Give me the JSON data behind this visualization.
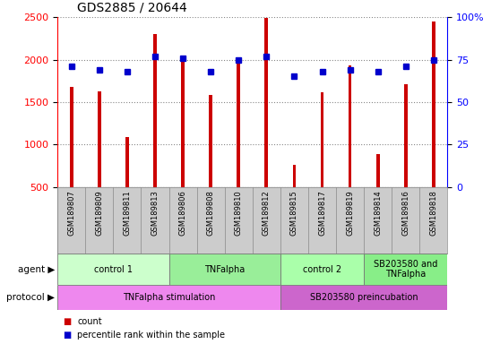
{
  "title": "GDS2885 / 20644",
  "samples": [
    "GSM189807",
    "GSM189809",
    "GSM189811",
    "GSM189813",
    "GSM189806",
    "GSM189808",
    "GSM189810",
    "GSM189812",
    "GSM189815",
    "GSM189817",
    "GSM189819",
    "GSM189814",
    "GSM189816",
    "GSM189818"
  ],
  "counts": [
    1680,
    1620,
    1090,
    2300,
    2000,
    1580,
    1980,
    2490,
    760,
    1610,
    1930,
    890,
    1710,
    2450
  ],
  "percentile_ranks": [
    71,
    69,
    68,
    77,
    76,
    68,
    75,
    77,
    65,
    68,
    69,
    68,
    71,
    75
  ],
  "ylim_left": [
    500,
    2500
  ],
  "ylim_right": [
    0,
    100
  ],
  "yticks_left": [
    500,
    1000,
    1500,
    2000,
    2500
  ],
  "yticks_right": [
    0,
    25,
    50,
    75,
    100
  ],
  "bar_color": "#cc0000",
  "marker_color": "#0000cc",
  "agent_groups": [
    {
      "label": "control 1",
      "start": 0,
      "end": 4,
      "color": "#ccffcc"
    },
    {
      "label": "TNFalpha",
      "start": 4,
      "end": 8,
      "color": "#99ee99"
    },
    {
      "label": "control 2",
      "start": 8,
      "end": 11,
      "color": "#aaffaa"
    },
    {
      "label": "SB203580 and\nTNFalpha",
      "start": 11,
      "end": 14,
      "color": "#88ee88"
    }
  ],
  "protocol_groups": [
    {
      "label": "TNFalpha stimulation",
      "start": 0,
      "end": 8,
      "color": "#ee88ee"
    },
    {
      "label": "SB203580 preincubation",
      "start": 8,
      "end": 14,
      "color": "#cc66cc"
    }
  ],
  "grid_color": "#888888",
  "tick_area_color": "#cccccc",
  "legend_items": [
    {
      "color": "#cc0000",
      "label": "count"
    },
    {
      "color": "#0000cc",
      "label": "percentile rank within the sample"
    }
  ],
  "bar_width": 0.12
}
